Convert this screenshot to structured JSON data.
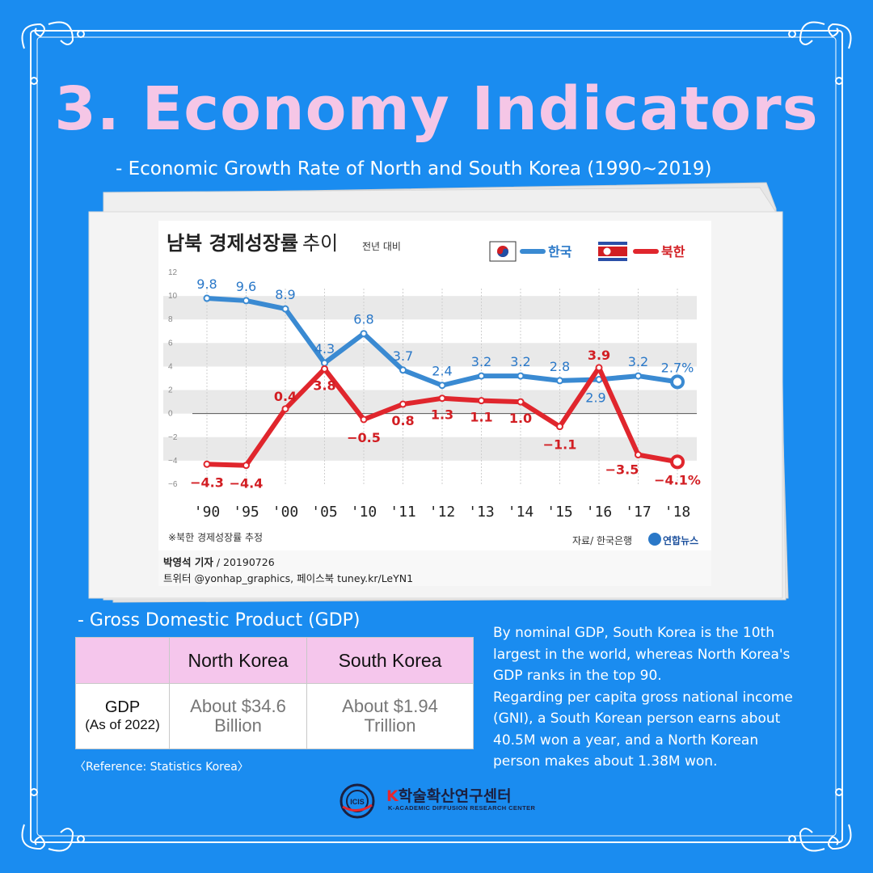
{
  "title": "3. Economy Indicators",
  "subtitle": "- Economic Growth Rate of North and South Korea (1990~2019)",
  "chart": {
    "title_bold": "남북 경제성장률",
    "title_light": "추이",
    "subtitle": "전년 대비",
    "legend_south": "한국",
    "legend_north": "북한",
    "footnote": "※북한 경제성장률 추정",
    "source": "자료/ 한국은행",
    "publisher": "연합뉴스",
    "credit_name": "박영석 기자",
    "credit_date": " / 20190726",
    "credit_social": "트위터 @yonhap_graphics, 페이스북 tuney.kr/LeYN1",
    "last_suffix": "%"
  },
  "chart_data": {
    "type": "line",
    "x": [
      "'90",
      "'95",
      "'00",
      "'05",
      "'10",
      "'11",
      "'12",
      "'13",
      "'14",
      "'15",
      "'16",
      "'17",
      "'18"
    ],
    "y_ticks": [
      "12",
      "10",
      "8",
      "6",
      "4",
      "2",
      "0",
      "−2",
      "−4",
      "−6"
    ],
    "ylim": [
      -6,
      12
    ],
    "grid": true,
    "series": [
      {
        "name": "한국",
        "color": "#3a8ad2",
        "values": [
          9.8,
          9.6,
          8.9,
          4.3,
          6.8,
          3.7,
          2.4,
          3.2,
          3.2,
          2.8,
          2.9,
          3.2,
          2.7
        ],
        "labels": [
          "9.8",
          "9.6",
          "8.9",
          "4.3",
          "6.8",
          "3.7",
          "2.4",
          "3.2",
          "3.2",
          "2.8",
          "2.9",
          "3.2",
          "2.7"
        ]
      },
      {
        "name": "북한",
        "color": "#e0262d",
        "values": [
          -4.3,
          -4.4,
          0.4,
          3.8,
          -0.5,
          0.8,
          1.3,
          1.1,
          1.0,
          -1.1,
          3.9,
          -3.5,
          -4.1
        ],
        "labels": [
          "−4.3",
          "−4.4",
          "0.4",
          "3.8",
          "−0.5",
          "0.8",
          "1.3",
          "1.1",
          "1.0",
          "−1.1",
          "3.9",
          "−3.5",
          "−4.1"
        ]
      }
    ]
  },
  "gdp": {
    "heading": "- Gross Domestic Product (GDP)",
    "col_north": "North Korea",
    "col_south": "South Korea",
    "row_label": "GDP",
    "row_sub": "(As of 2022)",
    "north_line1": "About $34.6",
    "north_line2": "Billion",
    "south_line1": "About $1.94",
    "south_line2": "Trillion",
    "reference": "〈Reference:  Statistics Korea〉"
  },
  "description": {
    "para1": "By nominal GDP, South Korea is the 10th largest in the world, whereas North Korea's GDP ranks in the top 90.",
    "para2": "Regarding per capita gross national income (GNI), a South Korean person earns about 40.5M won a year, and a North Korean person makes about 1.38M won."
  },
  "logo": {
    "badge": "ICIS",
    "k_letter": "K",
    "name": "학술확산연구센터",
    "subtitle": "K-ACADEMIC DIFFUSION RESEARCH CENTER"
  }
}
